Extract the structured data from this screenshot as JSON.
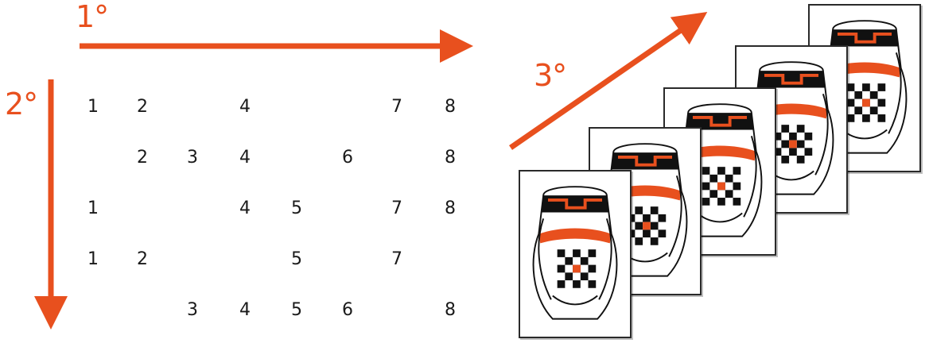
{
  "labels": {
    "first": "1°",
    "second": "2°",
    "third": "3°"
  },
  "grid": {
    "columns": [
      "1",
      "2",
      "3",
      "4",
      "5",
      "6",
      "7",
      "8"
    ],
    "rows": [
      [
        "1",
        "2",
        "",
        "4",
        "",
        "",
        "7",
        "8"
      ],
      [
        "",
        "2",
        "3",
        "4",
        "",
        "6",
        "",
        "8"
      ],
      [
        "1",
        "",
        "",
        "4",
        "5",
        "",
        "7",
        "8"
      ],
      [
        "1",
        "2",
        "",
        "",
        "5",
        "",
        "7",
        ""
      ],
      [
        "",
        "",
        "3",
        "4",
        "5",
        "6",
        "",
        "8"
      ]
    ]
  },
  "cards": {
    "count": 5,
    "description_icon": "vessel-drawing-icon"
  },
  "colors": {
    "accent": "#e8501e",
    "ink": "#1a1a1a"
  }
}
